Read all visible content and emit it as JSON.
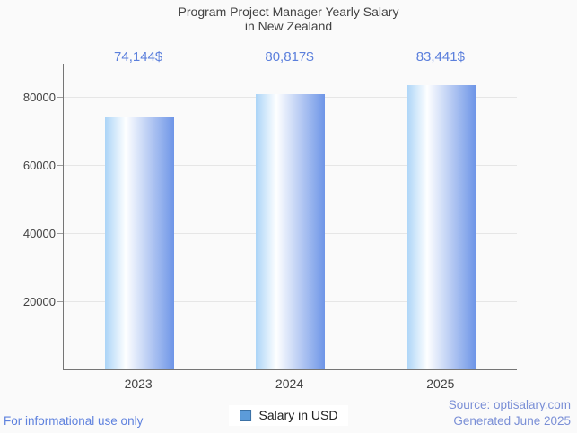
{
  "title": {
    "line1": "Program Project Manager Yearly Salary",
    "line2": "in New Zealand"
  },
  "legend": {
    "label": "Salary in USD"
  },
  "footer": {
    "left": "For informational use only",
    "source": "Source: optisalary.com",
    "generated": "Generated June 2025"
  },
  "colors": {
    "value_label_blue": "#5b7fdc",
    "footer_left_blue": "#5f82de",
    "footer_right_blue": "#7a8fd6",
    "legend_swatch_fill": "#5c9bd9",
    "legend_swatch_border": "#3b71a5",
    "bar_gradient_left": "#abd4f7",
    "bar_gradient_mid": "#ffffff",
    "bar_gradient_right": "#6e95e7",
    "axis_line": "#757575",
    "gridline": "#e6e6e6",
    "text_dark": "#424242",
    "background": "#fafafa"
  },
  "chart_data": {
    "type": "bar",
    "title": "Program Project Manager Yearly Salary in New Zealand",
    "categories": [
      "2023",
      "2024",
      "2025"
    ],
    "series": [
      {
        "name": "Salary in USD",
        "values": [
          74144,
          80817,
          83441
        ]
      }
    ],
    "value_labels": [
      "74,144$",
      "80,817$",
      "83,441$"
    ],
    "xlabel": "",
    "ylabel": "",
    "ylim": [
      0,
      89700
    ],
    "yticks": [
      20000,
      40000,
      60000,
      80000
    ],
    "ytick_labels": [
      "20000",
      "40000",
      "60000",
      "80000"
    ],
    "grid": true,
    "legend_position": "bottom"
  }
}
